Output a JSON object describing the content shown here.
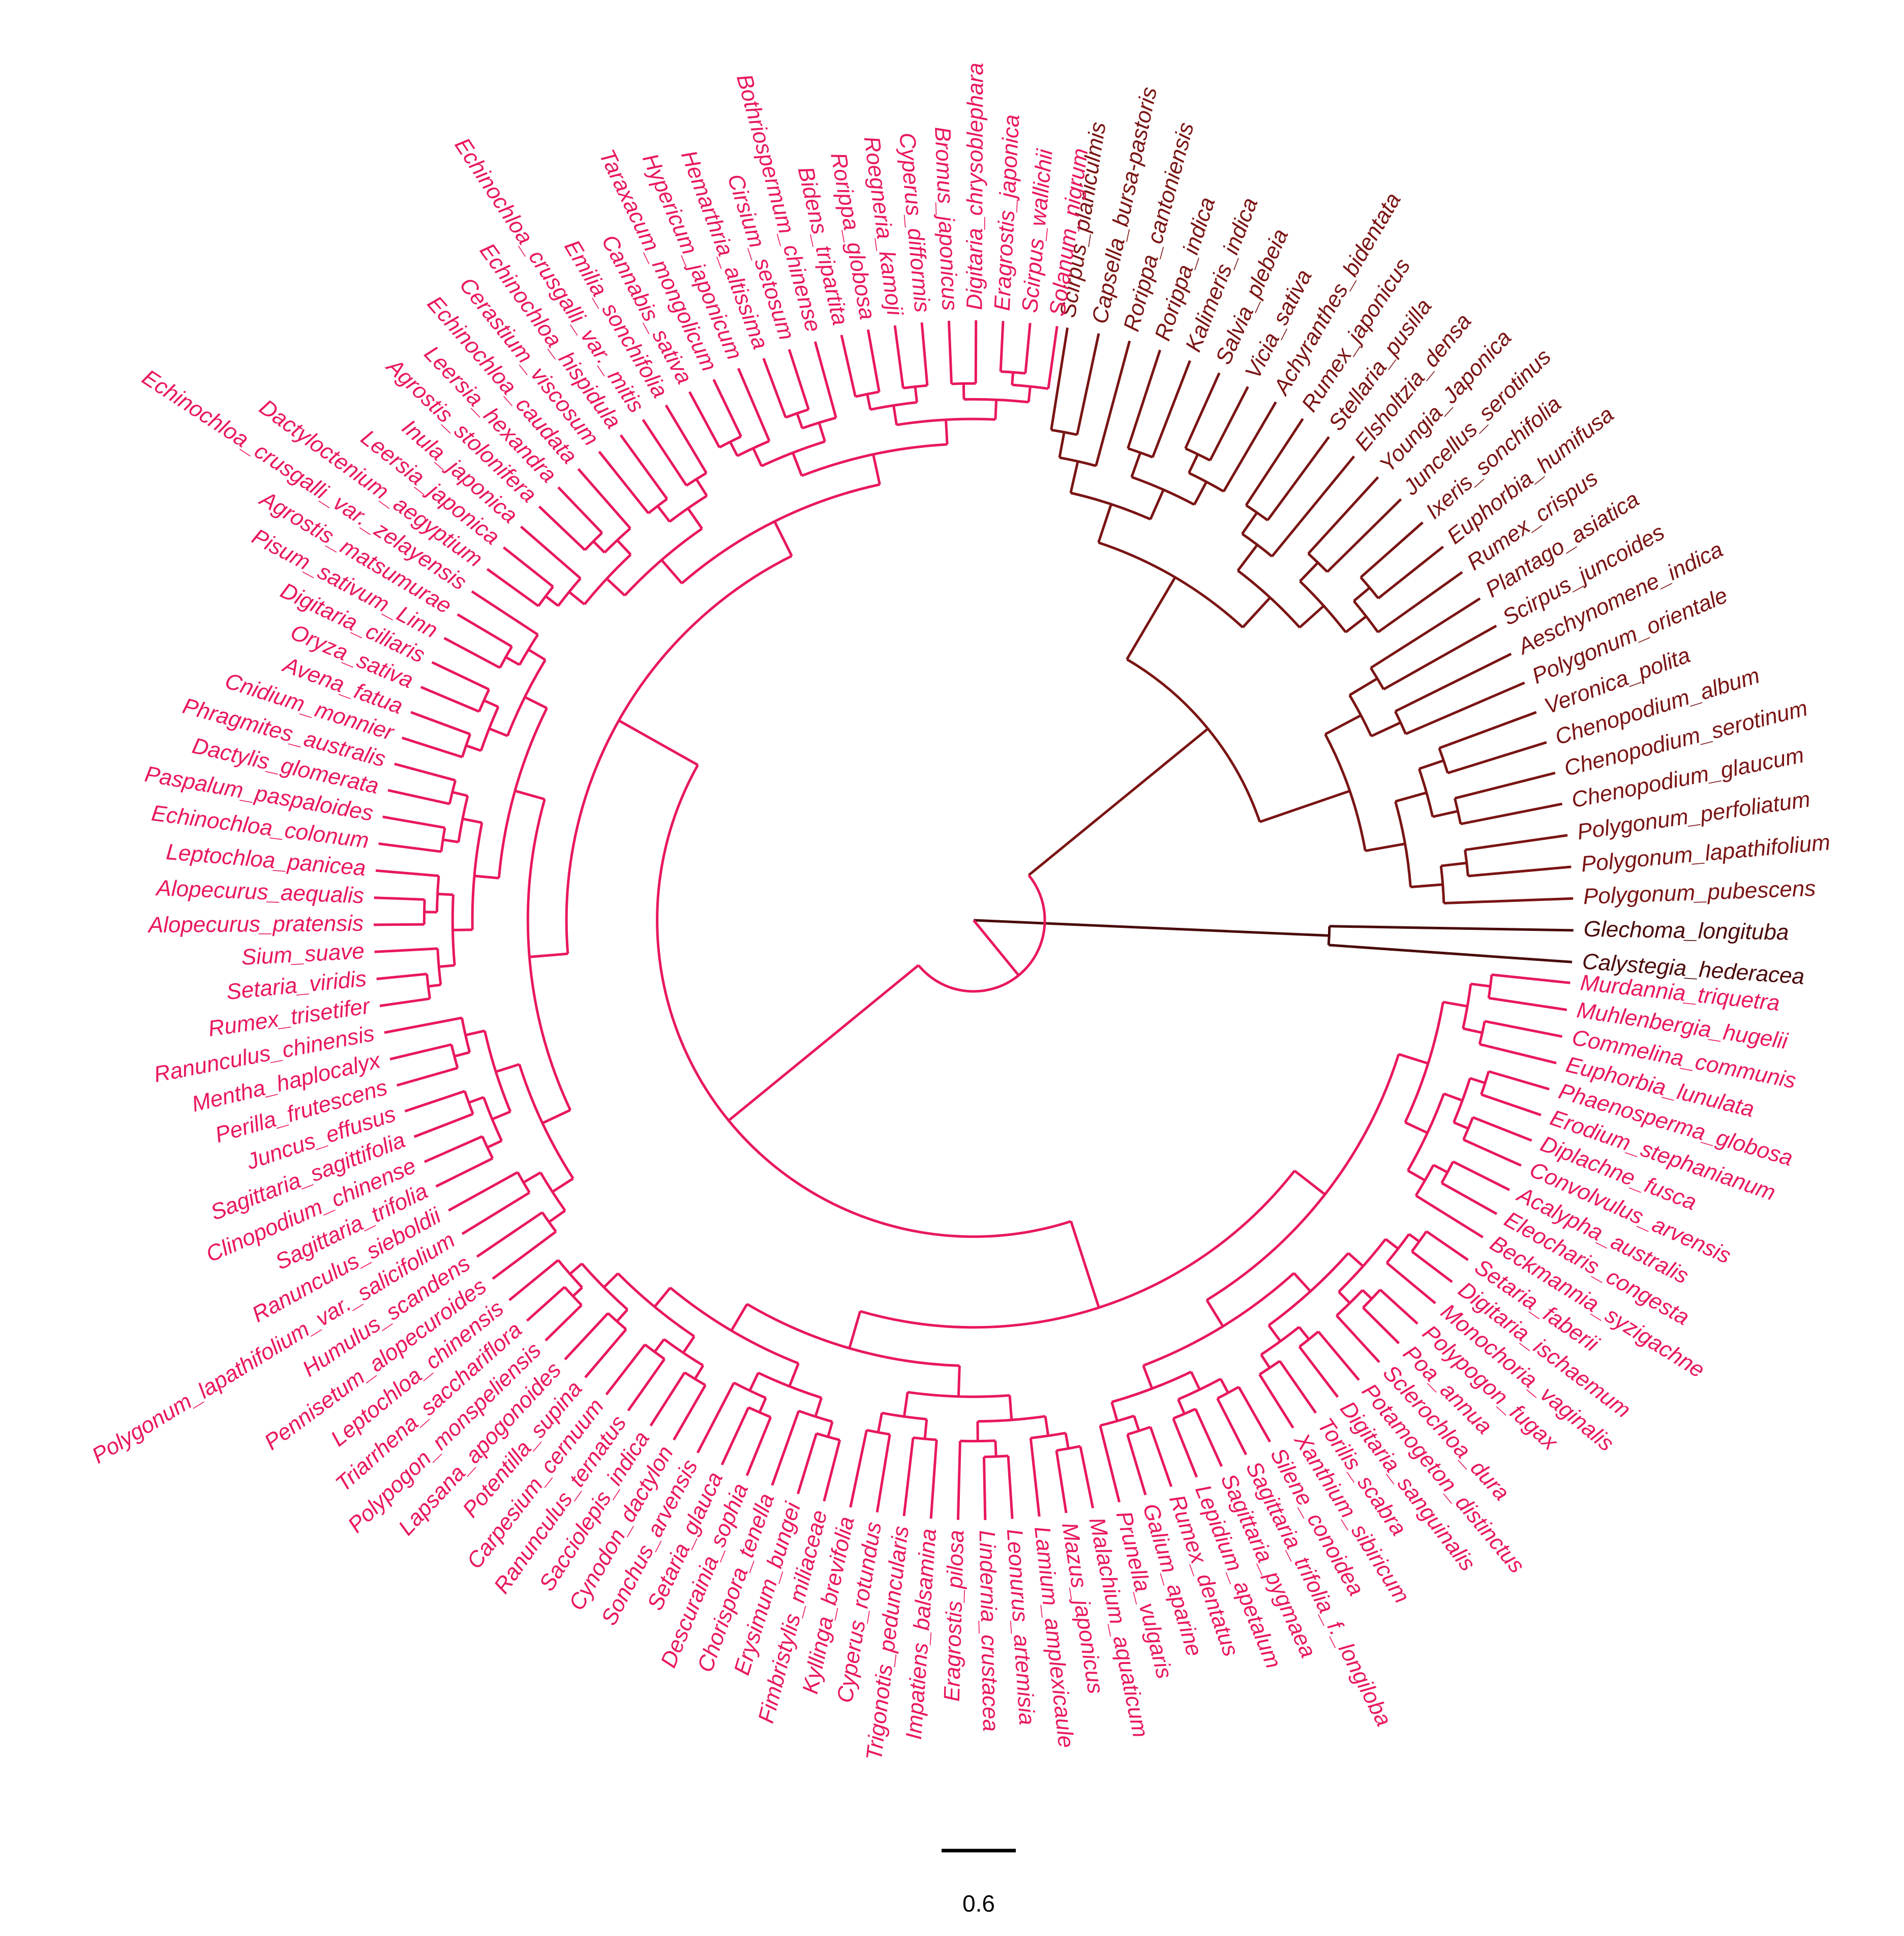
{
  "colors": {
    "clade_a": "#e8185c",
    "clade_b": "#7a1414",
    "clade_b_tips": "#4a0a0a",
    "scale": "#000000"
  },
  "scale_bar": {
    "label": "0.6"
  },
  "tree": {
    "tips_clade_b": [
      "Scirpus_planiculmis",
      "Capsella_bursa-pastoris",
      "Rorippa_cantoniensis",
      "Rorippa_indica",
      "Kalimeris_indica",
      "Salvia_plebeia",
      "Vicia_sativa",
      "Achyranthes_bidentata",
      "Rumex_japonicus",
      "Stellaria_pusilla",
      "Elsholtzia_densa",
      "Youngia_Japonica",
      "Juncellus_serotinus",
      "Ixeris_sonchifolia",
      "Euphorbia_humifusa",
      "Rumex_crispus",
      "Plantago_asiatica",
      "Scirpus_juncoides",
      "Aeschynomene_indica",
      "Polygonum_orientale",
      "Veronica_polita",
      "Chenopodium_album",
      "Chenopodium_serotinum",
      "Chenopodium_glaucum",
      "Polygonum_perfoliatum",
      "Polygonum_lapathifolium",
      "Polygonum_pubescens",
      "Glechoma_longituba",
      "Calystegia_hederacea"
    ],
    "tips_clade_a": [
      "Murdannia_triquetra",
      "Muhlenbergia_hugelii",
      "Commelina_communis",
      "Euphorbia_lunulata",
      "Phaenosperma_globosa",
      "Erodium_stephanianum",
      "Diplachne_fusca",
      "Convolvulus_arvensis",
      "Acalypha_australis",
      "Eleocharis_congesta",
      "Beckmannia_syzigachne",
      "Setaria_faberii",
      "Digitaria_ischaemum",
      "Monochoria_vaginalis",
      "Polypogon_fugax",
      "Poa_annua",
      "Sclerochloa_dura",
      "Potamogeton_distinctus",
      "Digitaria_sanguinalis",
      "Torilis_scabra",
      "Xanthium_sibiricum",
      "Silene_conoidea",
      "Sagittaria_trifolia_f._longiloba",
      "Sagittaria_pygmaea",
      "Lepidium_apetalum",
      "Rumex_dentatus",
      "Galium_aparine",
      "Prunella_vulgaris",
      "Malachium_aquaticum",
      "Mazus_japonicus",
      "Lamium_amplexicaule",
      "Leonurus_artemisia",
      "Lindernia_crustacea",
      "Eragrostis_pilosa",
      "Impatiens_balsamina",
      "Trigonotis_peduncularis",
      "Cyperus_rotundus",
      "Kyllinga_brevifolia",
      "Fimbristylis_miliaceae",
      "Erysimum_bungei",
      "Chorispora_tenella",
      "Descurainia_sophia",
      "Setaria_glauca",
      "Sonchus_arvensis",
      "Cynodon_dactylon",
      "Sacciolepis_indica",
      "Ranunculus_ternatus",
      "Carpesium_cernuum",
      "Potentilla_supina",
      "Lapsana_apogonoides",
      "Polypogon_monspeliensis",
      "Triarrhena_sacchariflora",
      "Leptochloa_chinensis",
      "Pennisetum_alopecuroides",
      "Humulus_scandens",
      "Polygonum_lapathifolium_var._salicifolium",
      "Ranunculus_sieboldii",
      "Sagittaria_trifolia",
      "Clinopodium_chinense",
      "Sagittaria_sagittifolia",
      "Juncus_effusus",
      "Perilla_frutescens",
      "Mentha_haplocalyx",
      "Ranunculus_chinensis",
      "Rumex_trisetifer",
      "Setaria_viridis",
      "Sium_suave",
      "Alopecurus_pratensis",
      "Alopecurus_aequalis",
      "Leptochloa_panicea",
      "Echinochloa_colonum",
      "Paspalum_paspaloides",
      "Dactylis_glomerata",
      "Phragmites_australis",
      "Cnidium_monnier",
      "Avena_fatua",
      "Oryza_sativa",
      "Digitaria_ciliaris",
      "Pisum_sativum_Linn",
      "Agrostis_matsumurae",
      "Echinochloa_crusgalli_var._zelayensis",
      "Dactyloctenium_aegyptium",
      "Leersia_japonica",
      "Inula_japonica",
      "Agrostis_stolonifera",
      "Leersia_hexandra",
      "Echinochloa_caudata",
      "Cerastium_viscosum",
      "Echinochloa_hispidula",
      "Echinochloa_crusgalli_var._mitis",
      "Emilia_sonchifolia",
      "Cannabis_sativa",
      "Taraxacum_mongolicum",
      "Hypericum_japonicum",
      "Hemarthria_altissima",
      "Cirsium_setosum",
      "Bothriospermum_chinense",
      "Bidens_tripartita",
      "Rorippa_globosa",
      "Roegneria_kamoji",
      "Cyperus_difformis",
      "Bromus_japonicus",
      "Digitaria_chrysoblephara",
      "Eragrostis_japonica",
      "Scirpus_wallichii",
      "Solanum_nigrum"
    ]
  }
}
